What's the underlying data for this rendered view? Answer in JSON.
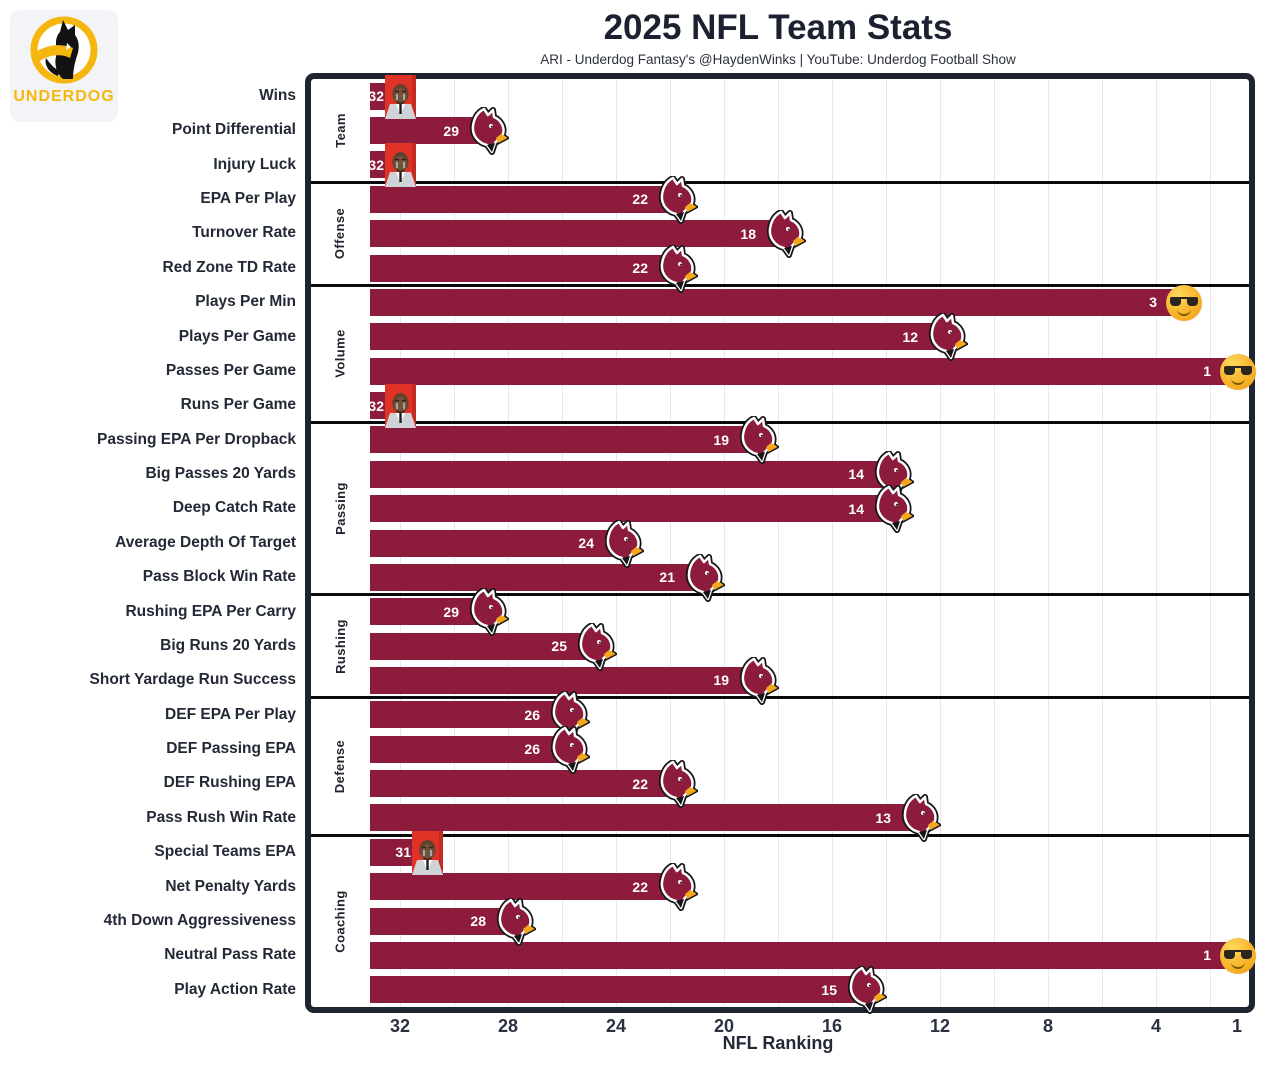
{
  "header": {
    "title": "2025 NFL Team Stats",
    "subtitle": "ARI - Underdog Fantasy's @HaydenWinks | YouTube: Underdog Football Show",
    "logo_text": "UNDERDOG"
  },
  "x_axis": {
    "label": "NFL Ranking",
    "ticks": [
      32,
      28,
      24,
      20,
      16,
      12,
      8,
      4,
      1
    ]
  },
  "colors": {
    "bar": "#8C1B3C",
    "frame": "#1E2430",
    "gold": "#F5B70D",
    "gridline": "#E9E9EC",
    "meme_background": "#DF3327"
  },
  "chart_data": {
    "type": "bar",
    "orientation": "horizontal",
    "title": "2025 NFL Team Stats",
    "subtitle": "ARI - Underdog Fantasy's @HaydenWinks | YouTube: Underdog Football Show",
    "xlabel": "NFL Ranking",
    "axis_reversed": true,
    "xlim": [
      33,
      1
    ],
    "x_ticks": [
      32,
      28,
      24,
      20,
      16,
      12,
      8,
      4,
      1
    ],
    "bar_color": "#8C1B3C",
    "grid": true,
    "sections": [
      {
        "name": "Team",
        "metrics": [
          {
            "label": "Wins",
            "rank": 32,
            "marker": "crying-jordan-meme"
          },
          {
            "label": "Point Differential",
            "rank": 29,
            "marker": "cardinals-logo"
          },
          {
            "label": "Injury Luck",
            "rank": 32,
            "marker": "crying-jordan-meme"
          }
        ]
      },
      {
        "name": "Offense",
        "metrics": [
          {
            "label": "EPA Per Play",
            "rank": 22,
            "marker": "cardinals-logo"
          },
          {
            "label": "Turnover Rate",
            "rank": 18,
            "marker": "cardinals-logo"
          },
          {
            "label": "Red Zone TD Rate",
            "rank": 22,
            "marker": "cardinals-logo"
          }
        ]
      },
      {
        "name": "Volume",
        "metrics": [
          {
            "label": "Plays Per Min",
            "rank": 3,
            "marker": "sunglasses-emoji"
          },
          {
            "label": "Plays Per Game",
            "rank": 12,
            "marker": "cardinals-logo"
          },
          {
            "label": "Passes Per Game",
            "rank": 1,
            "marker": "sunglasses-emoji"
          },
          {
            "label": "Runs Per Game",
            "rank": 32,
            "marker": "crying-jordan-meme"
          }
        ]
      },
      {
        "name": "Passing",
        "metrics": [
          {
            "label": "Passing EPA Per Dropback",
            "rank": 19,
            "marker": "cardinals-logo"
          },
          {
            "label": "Big Passes 20 Yards",
            "rank": 14,
            "marker": "cardinals-logo"
          },
          {
            "label": "Deep Catch Rate",
            "rank": 14,
            "marker": "cardinals-logo"
          },
          {
            "label": "Average Depth Of Target",
            "rank": 24,
            "marker": "cardinals-logo"
          },
          {
            "label": "Pass Block Win Rate",
            "rank": 21,
            "marker": "cardinals-logo"
          }
        ]
      },
      {
        "name": "Rushing",
        "metrics": [
          {
            "label": "Rushing EPA Per Carry",
            "rank": 29,
            "marker": "cardinals-logo"
          },
          {
            "label": "Big Runs 20 Yards",
            "rank": 25,
            "marker": "cardinals-logo"
          },
          {
            "label": "Short Yardage Run Success",
            "rank": 19,
            "marker": "cardinals-logo"
          }
        ]
      },
      {
        "name": "Defense",
        "metrics": [
          {
            "label": "DEF EPA Per Play",
            "rank": 26,
            "marker": "cardinals-logo"
          },
          {
            "label": "DEF Passing EPA",
            "rank": 26,
            "marker": "cardinals-logo"
          },
          {
            "label": "DEF Rushing EPA",
            "rank": 22,
            "marker": "cardinals-logo"
          },
          {
            "label": "Pass Rush Win Rate",
            "rank": 13,
            "marker": "cardinals-logo"
          }
        ]
      },
      {
        "name": "Coaching",
        "metrics": [
          {
            "label": "Special Teams EPA",
            "rank": 31,
            "marker": "crying-jordan-meme"
          },
          {
            "label": "Net Penalty Yards",
            "rank": 22,
            "marker": "cardinals-logo"
          },
          {
            "label": "4th Down Aggressiveness",
            "rank": 28,
            "marker": "cardinals-logo"
          },
          {
            "label": "Neutral Pass Rate",
            "rank": 1,
            "marker": "sunglasses-emoji"
          },
          {
            "label": "Play Action Rate",
            "rank": 15,
            "marker": "cardinals-logo"
          }
        ]
      }
    ]
  }
}
